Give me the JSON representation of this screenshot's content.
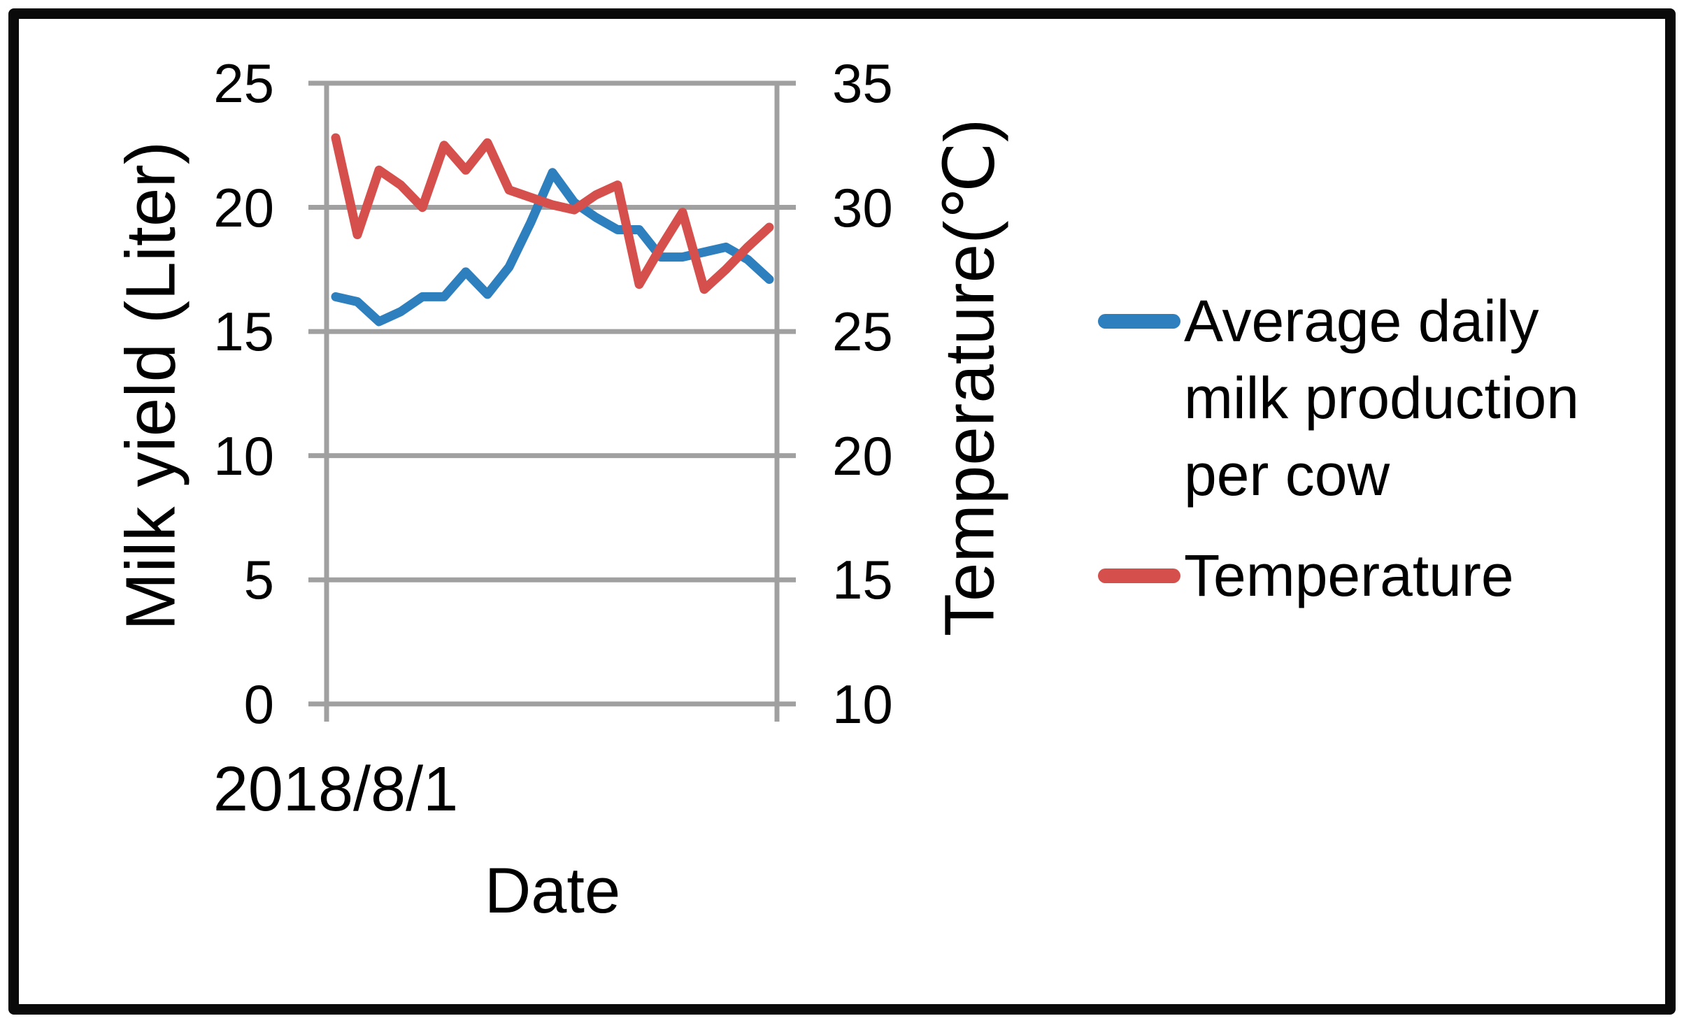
{
  "chart_data": {
    "type": "line",
    "title": "",
    "grid": true,
    "legend_position": "right",
    "x_axis": {
      "title": "Date",
      "first_tick_label": "2018/8/1",
      "n_points": 21
    },
    "y_left": {
      "title": "Milk yield (Liter)",
      "ticks": [
        "25",
        "20",
        "15",
        "10",
        "5",
        "0"
      ],
      "range": [
        0,
        25
      ]
    },
    "y_right": {
      "title": "Temperature(℃)",
      "ticks": [
        "35",
        "30",
        "25",
        "20",
        "15",
        "10"
      ],
      "range": [
        10,
        35
      ]
    },
    "series": [
      {
        "id": "milk",
        "name": "Average daily milk production per cow",
        "axis": "left",
        "color": "#2E7FBD",
        "values": [
          16.4,
          16.2,
          15.4,
          15.8,
          16.4,
          16.4,
          17.4,
          16.5,
          17.6,
          19.4,
          21.4,
          20.2,
          19.6,
          19.1,
          19.1,
          18.0,
          18.0,
          18.2,
          18.4,
          17.9,
          17.1
        ]
      },
      {
        "id": "temperature",
        "name": "Temperature",
        "axis": "right",
        "color": "#D5504C",
        "values": [
          32.8,
          28.9,
          31.5,
          30.9,
          30.0,
          32.5,
          31.5,
          32.6,
          30.7,
          30.4,
          30.1,
          29.9,
          30.5,
          30.9,
          26.9,
          28.4,
          29.8,
          26.7,
          27.5,
          28.4,
          29.2
        ]
      }
    ],
    "gridline_color": "#A0A0A0"
  },
  "legend": {
    "items": [
      {
        "label": "Average daily\nmilk production\nper cow",
        "series_id": "milk"
      },
      {
        "label": "Temperature",
        "series_id": "temperature"
      }
    ]
  }
}
